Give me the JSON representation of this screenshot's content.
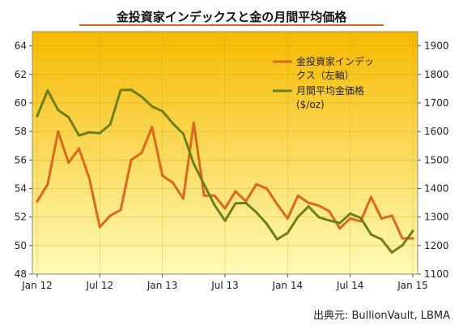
{
  "title": "金投資家インデックスと金の月間平均価格",
  "source": "出典元: BullionVault, LBMA",
  "colors": {
    "background_top": "#f6b900",
    "background_bottom": "#fffbb8",
    "index_line": "#d9691b",
    "price_line": "#6e7f1c",
    "underline": "#d9691b"
  },
  "chart_data": {
    "type": "line",
    "x": [
      "2012-01",
      "2012-02",
      "2012-03",
      "2012-04",
      "2012-05",
      "2012-06",
      "2012-07",
      "2012-08",
      "2012-09",
      "2012-10",
      "2012-11",
      "2012-12",
      "2013-01",
      "2013-02",
      "2013-03",
      "2013-04",
      "2013-05",
      "2013-06",
      "2013-07",
      "2013-08",
      "2013-09",
      "2013-10",
      "2013-11",
      "2013-12",
      "2014-01",
      "2014-02",
      "2014-03",
      "2014-04",
      "2014-05",
      "2014-06",
      "2014-07",
      "2014-08",
      "2014-09",
      "2014-10",
      "2014-11",
      "2014-12",
      "2015-01"
    ],
    "x_ticks": [
      "Jan 12",
      "Jul 12",
      "Jan 13",
      "Jul 13",
      "Jan 14",
      "Jul 14",
      "Jan 15"
    ],
    "y_left": {
      "min": 48,
      "max": 65,
      "ticks": [
        48,
        50,
        52,
        54,
        56,
        58,
        60,
        62,
        64
      ]
    },
    "y_right": {
      "min": 1100,
      "max": 1950,
      "ticks": [
        1100,
        1200,
        1300,
        1400,
        1500,
        1600,
        1700,
        1800,
        1900
      ]
    },
    "grid": true,
    "legend_position": "top-right",
    "series": [
      {
        "name": "金投資家インデックス（左軸）",
        "axis": "left",
        "values": [
          53.1,
          54.3,
          58.0,
          55.8,
          56.8,
          54.7,
          51.3,
          52.1,
          52.5,
          56.0,
          56.5,
          58.3,
          54.9,
          54.4,
          53.3,
          58.6,
          53.5,
          53.5,
          52.6,
          53.8,
          53.1,
          54.3,
          54.0,
          52.9,
          51.9,
          53.5,
          53.0,
          52.8,
          52.4,
          51.2,
          51.9,
          51.7,
          53.4,
          51.9,
          52.1,
          50.5,
          50.5
        ]
      },
      {
        "name": "月間平均金価格 ($/oz)",
        "axis": "right",
        "values": [
          1654,
          1744,
          1675,
          1650,
          1586,
          1597,
          1594,
          1625,
          1745,
          1746,
          1722,
          1688,
          1671,
          1628,
          1592,
          1487,
          1414,
          1342,
          1287,
          1348,
          1349,
          1317,
          1276,
          1222,
          1244,
          1301,
          1337,
          1299,
          1288,
          1279,
          1312,
          1297,
          1239,
          1222,
          1176,
          1201,
          1251
        ]
      }
    ]
  }
}
